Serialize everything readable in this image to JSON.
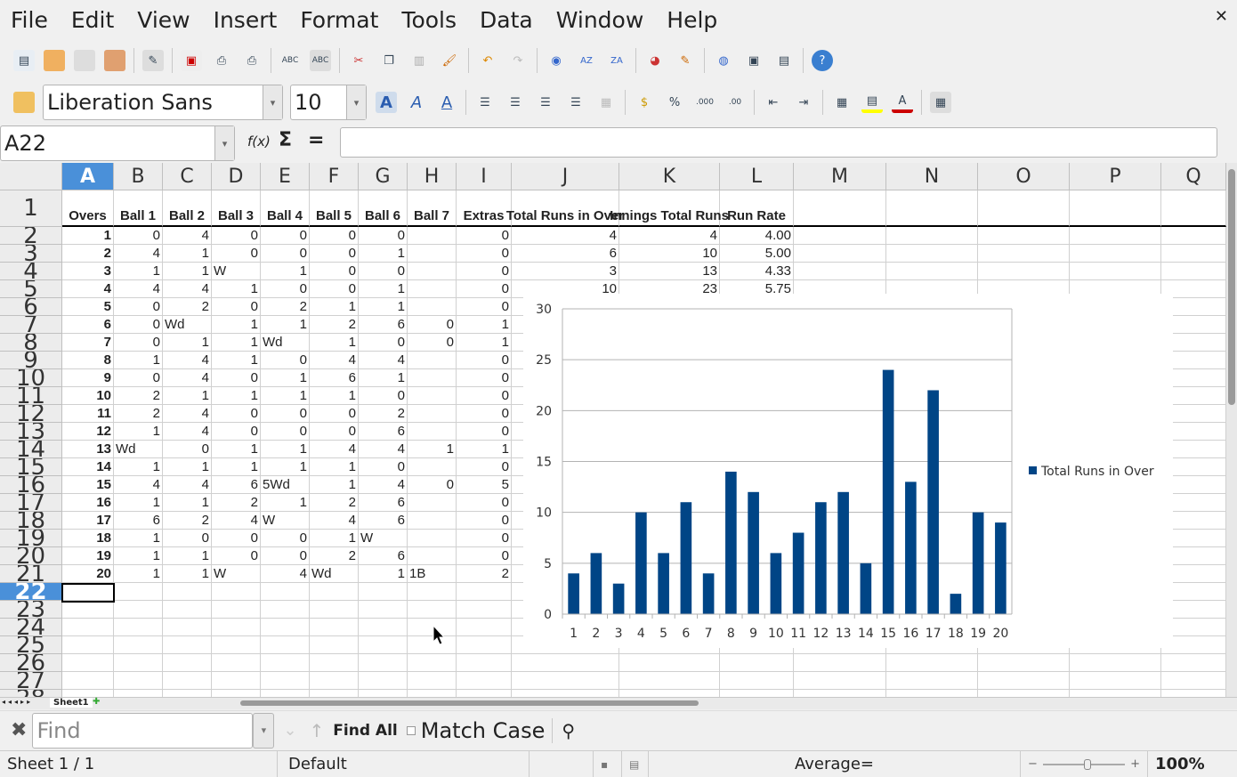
{
  "menu": [
    "File",
    "Edit",
    "View",
    "Insert",
    "Format",
    "Tools",
    "Data",
    "Window",
    "Help"
  ],
  "font_name": "Liberation Sans",
  "font_size": "10",
  "name_box": "A22",
  "formula": "",
  "formula_icons": {
    "function": "f(x)",
    "sum": "Σ",
    "equals": "="
  },
  "columns": [
    "A",
    "B",
    "C",
    "D",
    "E",
    "F",
    "G",
    "H",
    "I",
    "J",
    "K",
    "L",
    "M",
    "N",
    "O",
    "P",
    "Q"
  ],
  "selected_column": "A",
  "selected_row": "22",
  "headers": [
    "Overs",
    "Ball 1",
    "Ball 2",
    "Ball 3",
    "Ball 4",
    "Ball 5",
    "Ball 6",
    "Ball 7",
    "Extras",
    "Total Runs in Over",
    "Innings Total Runs",
    "Run Rate"
  ],
  "rows": [
    [
      "1",
      "0",
      "4",
      "0",
      "0",
      "0",
      "0",
      "",
      "0",
      "4",
      "4",
      "4.00"
    ],
    [
      "2",
      "4",
      "1",
      "0",
      "0",
      "0",
      "1",
      "",
      "0",
      "6",
      "10",
      "5.00"
    ],
    [
      "3",
      "1",
      "1",
      "W",
      "1",
      "0",
      "0",
      "",
      "0",
      "3",
      "13",
      "4.33"
    ],
    [
      "4",
      "4",
      "4",
      "1",
      "0",
      "0",
      "1",
      "",
      "0",
      "10",
      "23",
      "5.75"
    ],
    [
      "5",
      "0",
      "2",
      "0",
      "2",
      "1",
      "1",
      "",
      "0"
    ],
    [
      "6",
      "0",
      "Wd",
      "1",
      "1",
      "2",
      "6",
      "0",
      "1"
    ],
    [
      "7",
      "0",
      "1",
      "1",
      "Wd",
      "1",
      "0",
      "0",
      "1"
    ],
    [
      "8",
      "1",
      "4",
      "1",
      "0",
      "4",
      "4",
      "",
      "0"
    ],
    [
      "9",
      "0",
      "4",
      "0",
      "1",
      "6",
      "1",
      "",
      "0"
    ],
    [
      "10",
      "2",
      "1",
      "1",
      "1",
      "1",
      "0",
      "",
      "0"
    ],
    [
      "11",
      "2",
      "4",
      "0",
      "0",
      "0",
      "2",
      "",
      "0"
    ],
    [
      "12",
      "1",
      "4",
      "0",
      "0",
      "0",
      "6",
      "",
      "0"
    ],
    [
      "13",
      "Wd",
      "0",
      "1",
      "1",
      "4",
      "4",
      "1",
      "1"
    ],
    [
      "14",
      "1",
      "1",
      "1",
      "1",
      "1",
      "0",
      "",
      "0"
    ],
    [
      "15",
      "4",
      "4",
      "6",
      "5Wd",
      "1",
      "4",
      "0",
      "5"
    ],
    [
      "16",
      "1",
      "1",
      "2",
      "1",
      "2",
      "6",
      "",
      "0"
    ],
    [
      "17",
      "6",
      "2",
      "4",
      "W",
      "4",
      "6",
      "",
      "0"
    ],
    [
      "18",
      "1",
      "0",
      "0",
      "0",
      "1",
      "W",
      "",
      "0"
    ],
    [
      "19",
      "1",
      "1",
      "0",
      "0",
      "2",
      "6",
      "",
      "0"
    ],
    [
      "20",
      "1",
      "1",
      "W",
      "4",
      "Wd",
      "1",
      "1B",
      "2"
    ]
  ],
  "row_numbers": [
    "1",
    "2",
    "3",
    "4",
    "5",
    "6",
    "7",
    "8",
    "9",
    "10",
    "11",
    "12",
    "13",
    "14",
    "15",
    "16",
    "17",
    "18",
    "19",
    "20",
    "21",
    "22",
    "23",
    "24",
    "25",
    "26",
    "27",
    "28"
  ],
  "chart_data": {
    "type": "bar",
    "categories": [
      "1",
      "2",
      "3",
      "4",
      "5",
      "6",
      "7",
      "8",
      "9",
      "10",
      "11",
      "12",
      "13",
      "14",
      "15",
      "16",
      "17",
      "18",
      "19",
      "20"
    ],
    "series": [
      {
        "name": "Total Runs in Over",
        "values": [
          4,
          6,
          3,
          10,
          6,
          11,
          4,
          14,
          12,
          6,
          8,
          11,
          12,
          5,
          24,
          13,
          22,
          2,
          10,
          9
        ],
        "color": "#004586"
      }
    ],
    "ylim": [
      0,
      30
    ],
    "yticks": [
      "0",
      "5",
      "10",
      "15",
      "20",
      "25",
      "30"
    ],
    "grid": true,
    "legend": "right"
  },
  "sheet_tab": "Sheet1",
  "find": {
    "placeholder": "Find",
    "find_all": "Find All",
    "match_case": "Match Case"
  },
  "status": {
    "sheet": "Sheet 1 / 1",
    "style": "Default",
    "summary": "Average=",
    "zoom": "100%"
  }
}
